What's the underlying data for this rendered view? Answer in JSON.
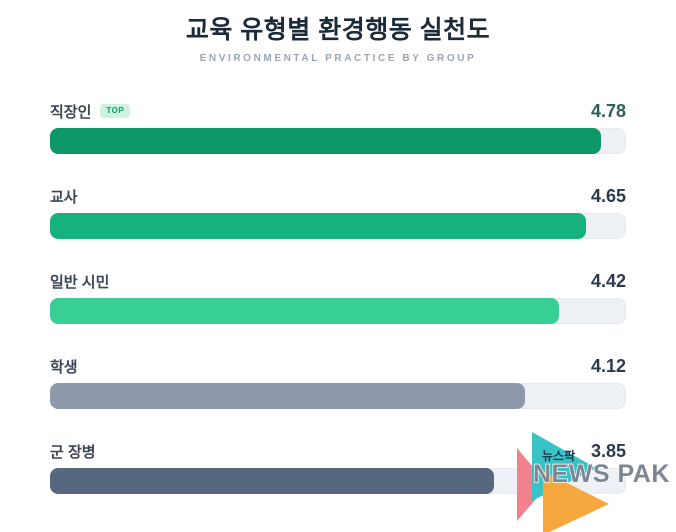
{
  "header": {
    "title": "교육 유형별 환경행동 실천도",
    "subtitle": "ENVIRONMENTAL PRACTICE BY GROUP"
  },
  "chart_data": {
    "type": "bar",
    "orientation": "horizontal",
    "title": "교육 유형별 환경행동 실천도",
    "subtitle": "ENVIRONMENTAL PRACTICE BY GROUP",
    "categories": [
      "직장인",
      "교사",
      "일반 시민",
      "학생",
      "군 장병"
    ],
    "values": [
      4.78,
      4.65,
      4.42,
      4.12,
      3.85
    ],
    "value_range": [
      0,
      5
    ],
    "bar_colors": [
      "#0d9766",
      "#16b27d",
      "#38cf95",
      "#8e99ab",
      "#56677f"
    ],
    "track_color": "#edf1f6",
    "top_badge_on": "직장인",
    "grid": false,
    "legend": false
  },
  "rows": [
    {
      "label": "직장인",
      "badge": "TOP",
      "value": "4.78",
      "pct": 95.6,
      "color": "#0d9766",
      "value_color": "#2f6057"
    },
    {
      "label": "교사",
      "value": "4.65",
      "pct": 93.0,
      "color": "#16b27d",
      "value_color": "#2d3a4e"
    },
    {
      "label": "일반 시민",
      "value": "4.42",
      "pct": 88.4,
      "color": "#38cf95",
      "value_color": "#2d3a4e"
    },
    {
      "label": "학생",
      "value": "4.12",
      "pct": 82.4,
      "color": "#8e99ab",
      "value_color": "#2d3a4e"
    },
    {
      "label": "군 장병",
      "value": "3.85",
      "pct": 77.0,
      "color": "#56677f",
      "value_color": "#2d3a4e"
    }
  ],
  "watermark": {
    "korean": "뉴스팍",
    "english": "NEWS PAK",
    "colors": {
      "salmon": "#f2808d",
      "teal": "#38c4c6",
      "orange": "#f6a83f",
      "korean_text": "#16394e",
      "english_text": "#7d8794"
    }
  }
}
